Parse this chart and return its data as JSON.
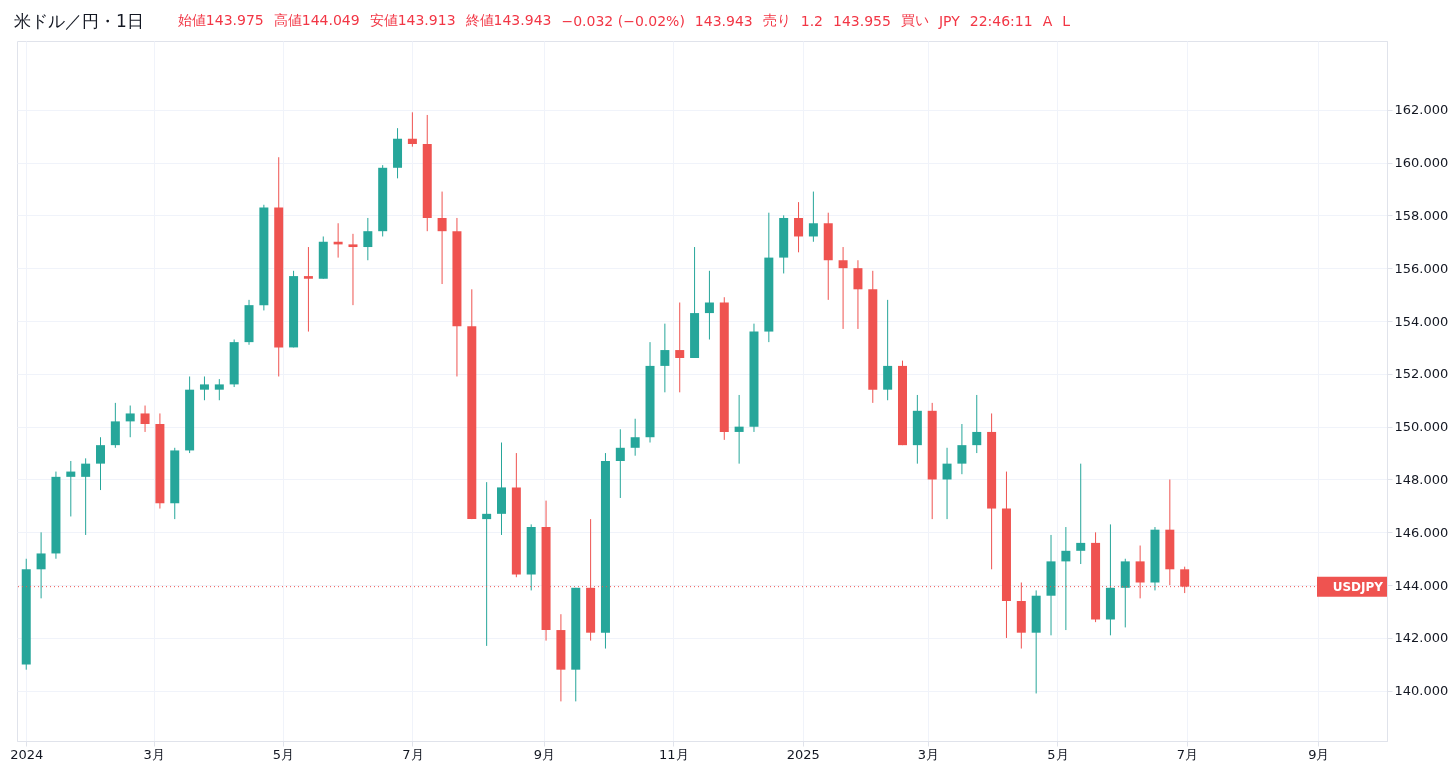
{
  "chart_data": {
    "type": "candlestick",
    "title": "米ドル／円・1日",
    "annotations": [
      "始値143.975",
      "高値144.049",
      "安値143.913",
      "終値143.943",
      "−0.032 (−0.02%)",
      "143.943",
      "売り",
      "1.2",
      "143.955",
      "買い",
      "JPY",
      "22:46:11",
      "A",
      "L"
    ],
    "x": [
      "2024-01-01",
      "2024-01-08",
      "2024-01-15",
      "2024-01-22",
      "2024-01-29",
      "2024-02-05",
      "2024-02-12",
      "2024-02-19",
      "2024-02-26",
      "2024-03-04",
      "2024-03-11",
      "2024-03-18",
      "2024-03-25",
      "2024-04-01",
      "2024-04-08",
      "2024-04-15",
      "2024-04-22",
      "2024-04-29",
      "2024-05-06",
      "2024-05-13",
      "2024-05-20",
      "2024-05-27",
      "2024-06-03",
      "2024-06-10",
      "2024-06-17",
      "2024-06-24",
      "2024-07-01",
      "2024-07-08",
      "2024-07-15",
      "2024-07-22",
      "2024-07-29",
      "2024-08-05",
      "2024-08-12",
      "2024-08-19",
      "2024-08-26",
      "2024-09-02",
      "2024-09-09",
      "2024-09-16",
      "2024-09-23",
      "2024-09-30",
      "2024-10-07",
      "2024-10-14",
      "2024-10-21",
      "2024-10-28",
      "2024-11-04",
      "2024-11-11",
      "2024-11-18",
      "2024-11-25",
      "2024-12-02",
      "2024-12-09",
      "2024-12-16",
      "2024-12-23",
      "2024-12-30",
      "2025-01-06",
      "2025-01-13",
      "2025-01-20",
      "2025-01-27",
      "2025-02-03",
      "2025-02-10",
      "2025-02-17",
      "2025-02-24",
      "2025-03-03",
      "2025-03-10",
      "2025-03-17",
      "2025-03-24",
      "2025-03-31",
      "2025-04-07",
      "2025-04-14",
      "2025-04-21",
      "2025-04-28",
      "2025-05-05",
      "2025-05-12",
      "2025-05-19",
      "2025-05-26",
      "2025-06-02",
      "2025-06-09",
      "2025-06-16",
      "2025-06-23",
      "2025-06-30"
    ],
    "ohlc": [
      [
        141.0,
        145.0,
        140.8,
        144.6
      ],
      [
        144.6,
        146.0,
        143.5,
        145.2
      ],
      [
        145.2,
        148.3,
        145.0,
        148.1
      ],
      [
        148.1,
        148.7,
        146.6,
        148.3
      ],
      [
        148.1,
        148.8,
        145.9,
        148.6
      ],
      [
        148.6,
        149.6,
        147.6,
        149.3
      ],
      [
        149.3,
        150.9,
        149.2,
        150.2
      ],
      [
        150.2,
        150.8,
        149.6,
        150.5
      ],
      [
        150.5,
        150.8,
        149.8,
        150.1
      ],
      [
        150.1,
        150.5,
        146.9,
        147.1
      ],
      [
        147.1,
        149.2,
        146.5,
        149.1
      ],
      [
        149.1,
        151.9,
        149.0,
        151.4
      ],
      [
        151.4,
        151.9,
        151.0,
        151.6
      ],
      [
        151.4,
        151.8,
        151.0,
        151.6
      ],
      [
        151.6,
        153.3,
        151.5,
        153.2
      ],
      [
        153.2,
        154.8,
        153.1,
        154.6
      ],
      [
        154.6,
        158.4,
        154.4,
        158.3
      ],
      [
        158.3,
        160.2,
        151.9,
        153.0
      ],
      [
        153.0,
        155.9,
        153.0,
        155.7
      ],
      [
        155.7,
        156.8,
        153.6,
        155.6
      ],
      [
        155.6,
        157.2,
        155.6,
        157.0
      ],
      [
        157.0,
        157.7,
        156.4,
        156.9
      ],
      [
        156.9,
        157.3,
        154.6,
        156.8
      ],
      [
        156.8,
        157.9,
        156.3,
        157.4
      ],
      [
        157.4,
        159.9,
        157.2,
        159.8
      ],
      [
        159.8,
        161.3,
        159.4,
        160.9
      ],
      [
        160.9,
        161.9,
        160.6,
        160.7
      ],
      [
        160.7,
        161.8,
        157.4,
        157.9
      ],
      [
        157.9,
        158.9,
        155.4,
        157.4
      ],
      [
        157.4,
        157.9,
        151.9,
        153.8
      ],
      [
        153.8,
        155.2,
        146.5,
        146.5
      ],
      [
        146.5,
        147.9,
        141.7,
        146.7
      ],
      [
        146.7,
        149.4,
        145.9,
        147.7
      ],
      [
        147.7,
        149.0,
        144.3,
        144.4
      ],
      [
        144.4,
        146.3,
        143.8,
        146.2
      ],
      [
        146.2,
        147.2,
        141.9,
        142.3
      ],
      [
        142.3,
        142.9,
        139.6,
        140.8
      ],
      [
        140.8,
        143.9,
        139.6,
        143.9
      ],
      [
        143.9,
        146.5,
        141.9,
        142.2
      ],
      [
        142.2,
        149.0,
        141.6,
        148.7
      ],
      [
        148.7,
        149.9,
        147.3,
        149.2
      ],
      [
        149.2,
        150.3,
        148.9,
        149.6
      ],
      [
        149.6,
        153.2,
        149.4,
        152.3
      ],
      [
        152.3,
        153.9,
        151.3,
        152.9
      ],
      [
        152.9,
        154.7,
        151.3,
        152.6
      ],
      [
        152.6,
        156.8,
        152.6,
        154.3
      ],
      [
        154.3,
        155.9,
        153.3,
        154.7
      ],
      [
        154.7,
        154.9,
        149.5,
        149.8
      ],
      [
        149.8,
        151.2,
        148.6,
        150.0
      ],
      [
        150.0,
        153.9,
        149.8,
        153.6
      ],
      [
        153.6,
        158.1,
        153.2,
        156.4
      ],
      [
        156.4,
        158.0,
        155.8,
        157.9
      ],
      [
        157.9,
        158.5,
        156.6,
        157.2
      ],
      [
        157.2,
        158.9,
        157.0,
        157.7
      ],
      [
        157.7,
        158.1,
        154.8,
        156.3
      ],
      [
        156.3,
        156.8,
        153.7,
        156.0
      ],
      [
        156.0,
        156.3,
        153.7,
        155.2
      ],
      [
        155.2,
        155.9,
        150.9,
        151.4
      ],
      [
        151.4,
        154.8,
        151.0,
        152.3
      ],
      [
        152.3,
        152.5,
        149.3,
        149.3
      ],
      [
        149.3,
        151.2,
        148.6,
        150.6
      ],
      [
        150.6,
        150.9,
        146.5,
        148.0
      ],
      [
        148.0,
        149.2,
        146.5,
        148.6
      ],
      [
        148.6,
        150.1,
        148.2,
        149.3
      ],
      [
        149.3,
        151.2,
        149.0,
        149.8
      ],
      [
        149.8,
        150.5,
        144.6,
        146.9
      ],
      [
        146.9,
        148.3,
        142.0,
        143.4
      ],
      [
        143.4,
        144.1,
        141.6,
        142.2
      ],
      [
        142.2,
        143.8,
        139.9,
        143.6
      ],
      [
        143.6,
        145.9,
        142.1,
        144.9
      ],
      [
        144.9,
        146.2,
        142.3,
        145.3
      ],
      [
        145.3,
        148.6,
        144.8,
        145.6
      ],
      [
        145.6,
        146.0,
        142.6,
        142.7
      ],
      [
        142.7,
        146.3,
        142.1,
        143.9
      ],
      [
        143.9,
        145.0,
        142.4,
        144.9
      ],
      [
        144.9,
        145.5,
        143.5,
        144.1
      ],
      [
        144.1,
        146.2,
        143.8,
        146.1
      ],
      [
        146.1,
        148.0,
        144.0,
        144.6
      ],
      [
        144.6,
        144.7,
        143.7,
        143.943
      ]
    ],
    "colors": [
      "#26a69a",
      "#26a69a",
      "#26a69a",
      "#26a69a",
      "#26a69a",
      "#26a69a",
      "#26a69a",
      "#26a69a",
      "#ef5350",
      "#ef5350",
      "#26a69a",
      "#26a69a",
      "#26a69a",
      "#26a69a",
      "#26a69a",
      "#26a69a",
      "#26a69a",
      "#ef5350",
      "#26a69a",
      "#ef5350",
      "#26a69a",
      "#ef5350",
      "#ef5350",
      "#26a69a",
      "#26a69a",
      "#26a69a",
      "#ef5350",
      "#ef5350",
      "#ef5350",
      "#ef5350",
      "#ef5350",
      "#26a69a",
      "#26a69a",
      "#ef5350",
      "#26a69a",
      "#ef5350",
      "#ef5350",
      "#26a69a",
      "#ef5350",
      "#26a69a",
      "#26a69a",
      "#26a69a",
      "#26a69a",
      "#26a69a",
      "#ef5350",
      "#26a69a",
      "#26a69a",
      "#ef5350",
      "#26a69a",
      "#26a69a",
      "#26a69a",
      "#26a69a",
      "#ef5350",
      "#26a69a",
      "#ef5350",
      "#ef5350",
      "#ef5350",
      "#ef5350",
      "#26a69a",
      "#ef5350",
      "#26a69a",
      "#ef5350",
      "#26a69a",
      "#26a69a",
      "#26a69a",
      "#ef5350",
      "#ef5350",
      "#ef5350",
      "#26a69a",
      "#26a69a",
      "#26a69a",
      "#26a69a",
      "#ef5350",
      "#26a69a",
      "#26a69a",
      "#ef5350",
      "#26a69a",
      "#ef5350",
      "#ef5350"
    ],
    "xlim": [
      "2023-12-30",
      "2025-10-01"
    ],
    "xticks": [
      {
        "value": "2024-01-01",
        "label": "2024"
      },
      {
        "value": "2024-03-01",
        "label": "3月"
      },
      {
        "value": "2024-05-01",
        "label": "5月"
      },
      {
        "value": "2024-07-01",
        "label": "7月"
      },
      {
        "value": "2024-09-01",
        "label": "9月"
      },
      {
        "value": "2024-11-01",
        "label": "11月"
      },
      {
        "value": "2025-01-01",
        "label": "2025"
      },
      {
        "value": "2025-03-01",
        "label": "3月"
      },
      {
        "value": "2025-05-01",
        "label": "5月"
      },
      {
        "value": "2025-07-01",
        "label": "7月"
      },
      {
        "value": "2025-09-01",
        "label": "9月"
      }
    ],
    "ylim": [
      138.1,
      164.6
    ],
    "yticks": [
      {
        "value": 140,
        "label": "140.000"
      },
      {
        "value": 142,
        "label": "142.000"
      },
      {
        "value": 144,
        "label": "144.000"
      },
      {
        "value": 146,
        "label": "146.000"
      },
      {
        "value": 148,
        "label": "148.000"
      },
      {
        "value": 150,
        "label": "150.000"
      },
      {
        "value": 152,
        "label": "152.000"
      },
      {
        "value": 154,
        "label": "154.000"
      },
      {
        "value": 156,
        "label": "156.000"
      },
      {
        "value": 158,
        "label": "158.000"
      },
      {
        "value": 160,
        "label": "160.000"
      },
      {
        "value": 162,
        "label": "162.000"
      }
    ],
    "ref_lines": [
      {
        "axis": "y",
        "value": 143.943,
        "label": "USDJPY",
        "color": "#ef5350",
        "line_style": "dotted"
      }
    ],
    "grid": true
  }
}
